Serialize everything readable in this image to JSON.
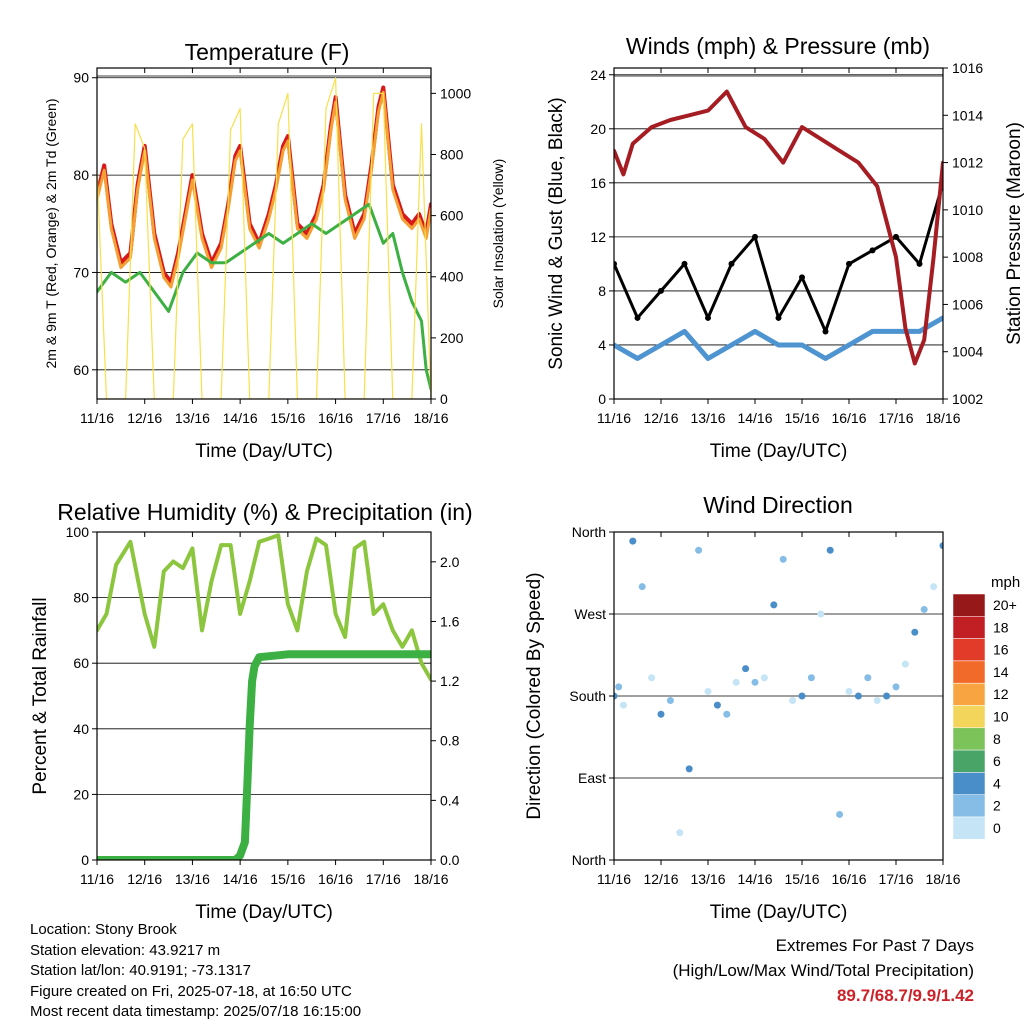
{
  "x_ticks": [
    "11/16",
    "12/16",
    "13/16",
    "14/16",
    "15/16",
    "16/16",
    "17/16",
    "18/16"
  ],
  "chart_data": [
    {
      "type": "line",
      "title": "Temperature (F)",
      "xlabel": "Time (Day/UTC)",
      "ylabel": "2m & 9m T (Red, Orange) & 2m Td (Green)",
      "ylabel_right": "Solar Insolation (Yellow)",
      "ylim": [
        57,
        91
      ],
      "yticks": [
        60,
        70,
        80,
        90
      ],
      "ylim_right": [
        0,
        1083
      ],
      "yticks_right": [
        0,
        200,
        400,
        600,
        800,
        1000
      ],
      "grid": "horizontal",
      "series": [
        {
          "name": "2m T",
          "color": "#d7191c",
          "x": [
            0,
            0.15,
            0.3,
            0.5,
            0.7,
            0.85,
            1.0,
            1.2,
            1.4,
            1.55,
            1.7,
            1.85,
            2.0,
            2.2,
            2.4,
            2.6,
            2.75,
            2.9,
            3.0,
            3.2,
            3.4,
            3.6,
            3.75,
            3.9,
            4.0,
            4.2,
            4.4,
            4.6,
            4.75,
            4.9,
            5.0,
            5.2,
            5.4,
            5.6,
            5.75,
            5.9,
            6.0,
            6.2,
            6.4,
            6.6,
            6.75,
            6.9,
            7.0
          ],
          "y": [
            78,
            81,
            75,
            71,
            72,
            79,
            83,
            74,
            70,
            69,
            72,
            76,
            80,
            74,
            71,
            73,
            77,
            82,
            83,
            75,
            73,
            76,
            79,
            83,
            84,
            75,
            74,
            76,
            79,
            85,
            88,
            78,
            74,
            76,
            81,
            87,
            89,
            79,
            76,
            75,
            76,
            74,
            77
          ]
        },
        {
          "name": "9m T",
          "color": "#f5a034",
          "x": [
            0,
            0.15,
            0.3,
            0.5,
            0.7,
            0.85,
            1.0,
            1.2,
            1.4,
            1.55,
            1.7,
            1.85,
            2.0,
            2.2,
            2.4,
            2.6,
            2.75,
            2.9,
            3.0,
            3.2,
            3.4,
            3.6,
            3.75,
            3.9,
            4.0,
            4.2,
            4.4,
            4.6,
            4.75,
            4.9,
            5.0,
            5.2,
            5.4,
            5.6,
            5.75,
            5.9,
            6.0,
            6.2,
            6.4,
            6.6,
            6.75,
            6.9,
            7.0
          ],
          "y": [
            77.5,
            80.5,
            74.5,
            70.5,
            71.5,
            78.5,
            82.5,
            73.5,
            69.5,
            68.5,
            71.5,
            75.5,
            79.5,
            73.5,
            70.5,
            72.5,
            76.5,
            81.5,
            82.5,
            74.5,
            72.5,
            75.5,
            78.5,
            82.5,
            83.5,
            74.5,
            73.5,
            75.5,
            78.5,
            84.5,
            87.5,
            77.5,
            73.5,
            75.5,
            80.5,
            86.5,
            88.5,
            78.5,
            75.5,
            74.5,
            75.5,
            73.5,
            76.5
          ]
        },
        {
          "name": "2m Td",
          "color": "#3db043",
          "x": [
            0,
            0.3,
            0.6,
            0.9,
            1.2,
            1.5,
            1.8,
            2.1,
            2.4,
            2.7,
            3.0,
            3.3,
            3.6,
            3.9,
            4.2,
            4.5,
            4.8,
            5.1,
            5.4,
            5.7,
            6.0,
            6.2,
            6.4,
            6.6,
            6.8,
            6.9,
            7.0
          ],
          "y": [
            68,
            70,
            69,
            70,
            68,
            66,
            70,
            72,
            71,
            71,
            72,
            73,
            74,
            73,
            74,
            75,
            74,
            75,
            76,
            77,
            73,
            74,
            70,
            67,
            65,
            60,
            58
          ]
        },
        {
          "name": "Solar Insolation",
          "color": "#f7e04a",
          "axis": "right",
          "x": [
            0,
            0.2,
            0.4,
            0.6,
            0.8,
            1.0,
            1.2,
            1.4,
            1.6,
            1.8,
            2.0,
            2.2,
            2.4,
            2.6,
            2.8,
            3.0,
            3.2,
            3.4,
            3.6,
            3.8,
            4.0,
            4.2,
            4.4,
            4.6,
            4.8,
            5.0,
            5.2,
            5.4,
            5.6,
            5.8,
            6.0,
            6.2,
            6.4,
            6.6,
            6.8,
            7.0
          ],
          "y": [
            750,
            0,
            0,
            0,
            900,
            820,
            0,
            0,
            0,
            850,
            900,
            0,
            0,
            0,
            880,
            950,
            0,
            0,
            0,
            900,
            1000,
            0,
            0,
            0,
            950,
            1050,
            0,
            0,
            0,
            1000,
            1000,
            0,
            0,
            0,
            900,
            0
          ]
        }
      ]
    },
    {
      "type": "line",
      "title": "Winds (mph) & Pressure (mb)",
      "xlabel": "Time (Day/UTC)",
      "ylabel": "Sonic Wind & Gust (Blue, Black)",
      "ylabel_right": "Station Pressure (Maroon)",
      "ylim": [
        0,
        24.5
      ],
      "yticks": [
        0,
        4,
        8,
        12,
        16,
        20,
        24
      ],
      "ylim_right": [
        1002,
        1016
      ],
      "yticks_right": [
        1002,
        1004,
        1006,
        1008,
        1010,
        1012,
        1014,
        1016
      ],
      "grid": "horizontal",
      "series": [
        {
          "name": "Sonic Wind",
          "color": "#4d94d1",
          "x": [
            0,
            0.5,
            1.0,
            1.5,
            2.0,
            2.5,
            3.0,
            3.5,
            4.0,
            4.5,
            5.0,
            5.5,
            6.0,
            6.5,
            7.0
          ],
          "y": [
            4,
            3,
            4,
            5,
            3,
            4,
            5,
            4,
            4,
            3,
            4,
            5,
            5,
            5,
            6
          ]
        },
        {
          "name": "Gust",
          "color": "#000000",
          "x": [
            0,
            0.5,
            1.0,
            1.5,
            2.0,
            2.5,
            3.0,
            3.5,
            4.0,
            4.5,
            5.0,
            5.5,
            6.0,
            6.5,
            7.0
          ],
          "y": [
            10,
            6,
            8,
            10,
            6,
            10,
            12,
            6,
            9,
            5,
            10,
            11,
            12,
            10,
            16
          ]
        },
        {
          "name": "Station Pressure",
          "color": "#a51d23",
          "axis": "right",
          "x": [
            0,
            0.2,
            0.4,
            0.8,
            1.2,
            1.6,
            2.0,
            2.4,
            2.8,
            3.2,
            3.6,
            4.0,
            4.4,
            4.8,
            5.2,
            5.6,
            6.0,
            6.2,
            6.4,
            6.6,
            6.8,
            7.0
          ],
          "y": [
            1012.5,
            1011.5,
            1012.8,
            1013.5,
            1013.8,
            1014.0,
            1014.2,
            1015.0,
            1013.5,
            1013.0,
            1012.0,
            1013.5,
            1013.0,
            1012.5,
            1012.0,
            1011.0,
            1008.0,
            1005.0,
            1003.5,
            1004.5,
            1008.0,
            1012.0
          ]
        }
      ]
    },
    {
      "type": "line",
      "title": "Relative Humidity (%) & Precipitation (in)",
      "xlabel": "Time (Day/UTC)",
      "ylabel": "Percent & Total Rainfall",
      "ylim": [
        0,
        100
      ],
      "yticks": [
        0,
        20,
        40,
        60,
        80,
        100
      ],
      "ylim_right": [
        0,
        2.2
      ],
      "yticks_right": [
        "0.0",
        "0.4",
        "0.8",
        "1.2",
        "1.6",
        "2.0"
      ],
      "grid": "horizontal",
      "series": [
        {
          "name": "Relative Humidity",
          "color": "#8cc63f",
          "x": [
            0,
            0.2,
            0.4,
            0.7,
            1.0,
            1.2,
            1.4,
            1.6,
            1.8,
            2.0,
            2.2,
            2.4,
            2.6,
            2.8,
            3.0,
            3.2,
            3.4,
            3.6,
            3.8,
            4.0,
            4.2,
            4.4,
            4.6,
            4.8,
            5.0,
            5.2,
            5.4,
            5.6,
            5.8,
            6.0,
            6.2,
            6.4,
            6.6,
            6.8,
            7.0
          ],
          "y": [
            70,
            75,
            90,
            97,
            75,
            65,
            88,
            91,
            89,
            95,
            70,
            85,
            96,
            96,
            75,
            85,
            97,
            98,
            99,
            78,
            70,
            88,
            98,
            96,
            75,
            68,
            95,
            97,
            75,
            78,
            70,
            65,
            70,
            60,
            55
          ]
        },
        {
          "name": "Total Precipitation",
          "color": "#3db043",
          "axis": "right",
          "x": [
            0,
            1.0,
            2.0,
            2.9,
            3.0,
            3.1,
            3.15,
            3.2,
            3.25,
            3.3,
            3.4,
            4.0,
            5.0,
            6.0,
            7.0
          ],
          "y": [
            0,
            0,
            0,
            0,
            0.03,
            0.12,
            0.5,
            0.9,
            1.2,
            1.3,
            1.36,
            1.38,
            1.38,
            1.38,
            1.38
          ]
        }
      ]
    },
    {
      "type": "scatter",
      "title": "Wind Direction",
      "xlabel": "Time (Day/UTC)",
      "ylabel": "Direction (Colored By Speed)",
      "ylim": [
        0,
        360
      ],
      "yticks": [
        "North",
        "East",
        "South",
        "West",
        "North"
      ],
      "colorbar_title": "mph",
      "colorbar_labels": [
        "20+",
        "18",
        "16",
        "14",
        "12",
        "10",
        "8",
        "6",
        "4",
        "2",
        "0"
      ],
      "colorbar_colors": [
        "#961818",
        "#c21f25",
        "#e23b2a",
        "#f26a2a",
        "#f8a541",
        "#f2d55a",
        "#7cc35a",
        "#49a467",
        "#4a8ec9",
        "#86bde6",
        "#c5e4f5"
      ],
      "series": [
        {
          "name": "Direction",
          "x": [
            0,
            0.1,
            0.2,
            0.4,
            0.6,
            0.8,
            1.0,
            1.2,
            1.4,
            1.6,
            1.8,
            2.0,
            2.2,
            2.4,
            2.6,
            2.8,
            3.0,
            3.2,
            3.4,
            3.6,
            3.8,
            4.0,
            4.2,
            4.4,
            4.6,
            4.8,
            5.0,
            5.2,
            5.4,
            5.6,
            5.8,
            6.0,
            6.2,
            6.4,
            6.6,
            6.8,
            7.0
          ],
          "y": [
            180,
            190,
            170,
            350,
            300,
            200,
            160,
            175,
            30,
            100,
            340,
            185,
            170,
            160,
            195,
            210,
            195,
            200,
            280,
            330,
            175,
            180,
            200,
            270,
            340,
            50,
            185,
            180,
            200,
            175,
            180,
            190,
            215,
            250,
            275,
            300,
            345
          ]
        }
      ]
    }
  ],
  "info": {
    "location": "Location: Stony Brook",
    "elevation": "Station elevation: 43.9217 m",
    "latlon": "Station lat/lon: 40.9191; -73.1317",
    "created": "Figure created on Fri, 2025-07-18, at 16:50 UTC",
    "recent": "Most recent data timestamp: 2025/07/18 16:15:00"
  },
  "extremes": {
    "title": "Extremes For Past 7 Days",
    "subtitle": "(High/Low/Max Wind/Total Precipitation)",
    "values": "89.7/68.7/9.9/1.42"
  }
}
